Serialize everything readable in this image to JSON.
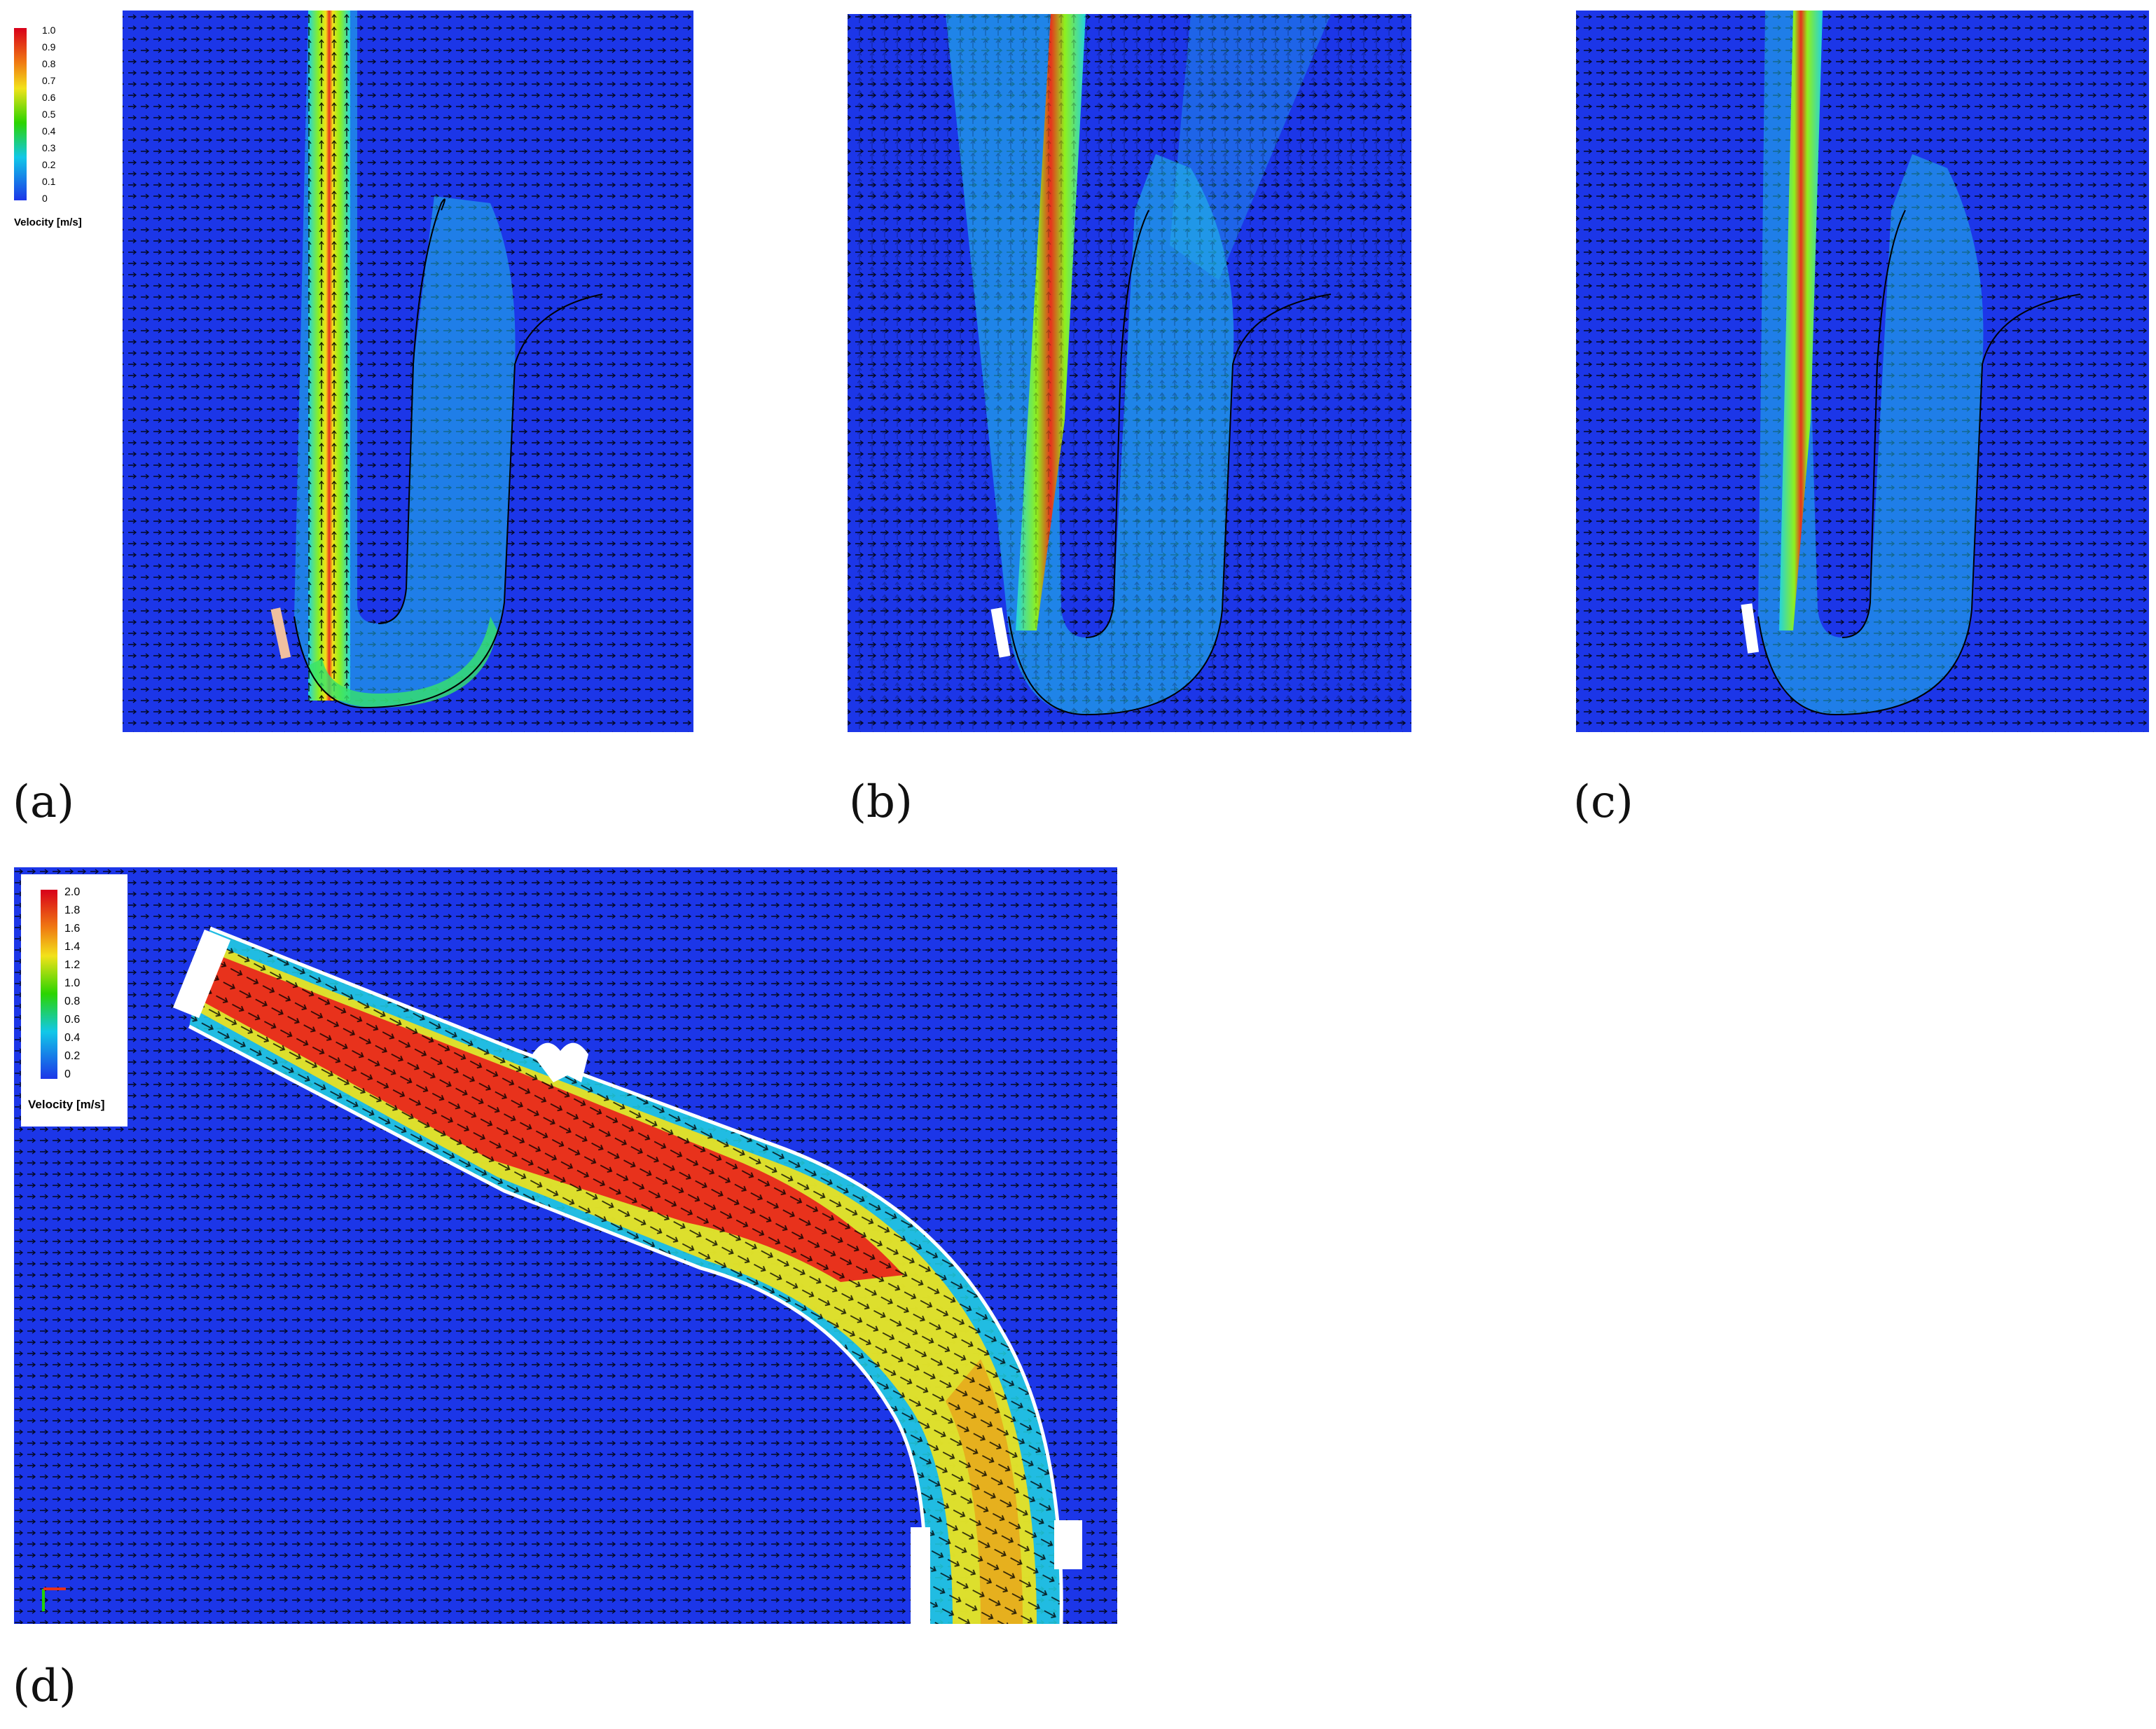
{
  "figure": {
    "panels": [
      {
        "label": "(a)"
      },
      {
        "label": "(b)"
      },
      {
        "label": "(c)"
      },
      {
        "label": "(d)"
      }
    ]
  },
  "legend_top": {
    "title": "Velocity [m/s]",
    "ticks": [
      "1.0",
      "0.9",
      "0.8",
      "0.7",
      "0.6",
      "0.5",
      "0.4",
      "0.3",
      "0.2",
      "0.1",
      "0"
    ]
  },
  "legend_bottom": {
    "title": "Velocity [m/s]",
    "ticks": [
      "2.0",
      "1.8",
      "1.6",
      "1.4",
      "1.2",
      "1.0",
      "0.8",
      "0.6",
      "0.4",
      "0.2",
      "0"
    ]
  },
  "colors": {
    "background_flow": "#1c36e8",
    "jet_core": "#e8321c",
    "jet_mid": "#f2e21a",
    "jet_edge": "#22d3e0"
  }
}
